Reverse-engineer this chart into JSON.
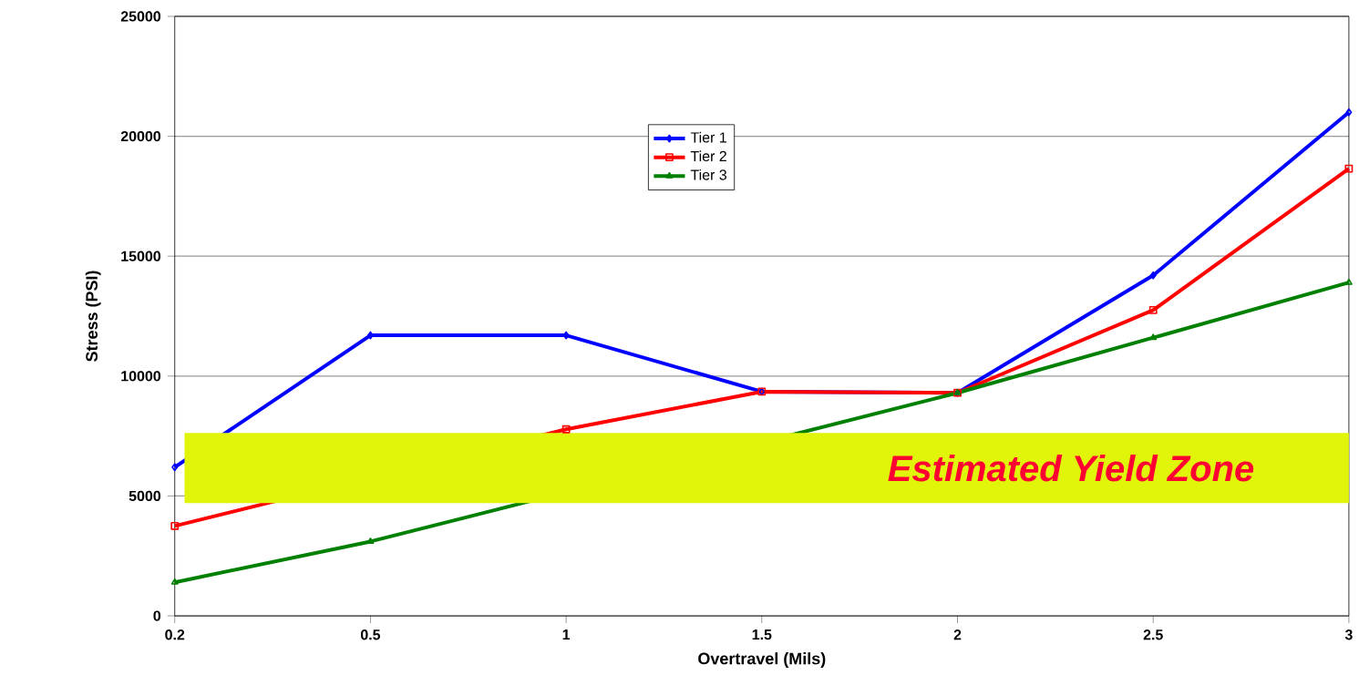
{
  "chart_data": {
    "type": "line",
    "xlabel": "Overtravel (Mils)",
    "ylabel": "Stress (PSI)",
    "categories": [
      "0.2",
      "0.5",
      "1",
      "1.5",
      "2",
      "2.5",
      "3"
    ],
    "series": [
      {
        "name": "Tier 1",
        "color": "#0000ff",
        "marker": "diamond",
        "values": [
          6200,
          11700,
          11700,
          9350,
          9300,
          14200,
          21000
        ]
      },
      {
        "name": "Tier 2",
        "color": "#ff0000",
        "marker": "square",
        "values": [
          3750,
          null,
          7780,
          9350,
          9300,
          12750,
          18650
        ]
      },
      {
        "name": "Tier 3",
        "color": "#008000",
        "marker": "triangle",
        "values": [
          1400,
          3100,
          null,
          null,
          9300,
          11600,
          13900
        ]
      }
    ],
    "ylim": [
      0,
      25000
    ],
    "yticks": [
      0,
      5000,
      10000,
      15000,
      20000,
      25000
    ],
    "grid": "y",
    "legend": "top",
    "line_style": "solid",
    "bands": [
      {
        "axis": "y",
        "from": 4700,
        "to": 7630,
        "label": "Estimated Yield Zone",
        "color": "#e0f50a"
      }
    ]
  }
}
